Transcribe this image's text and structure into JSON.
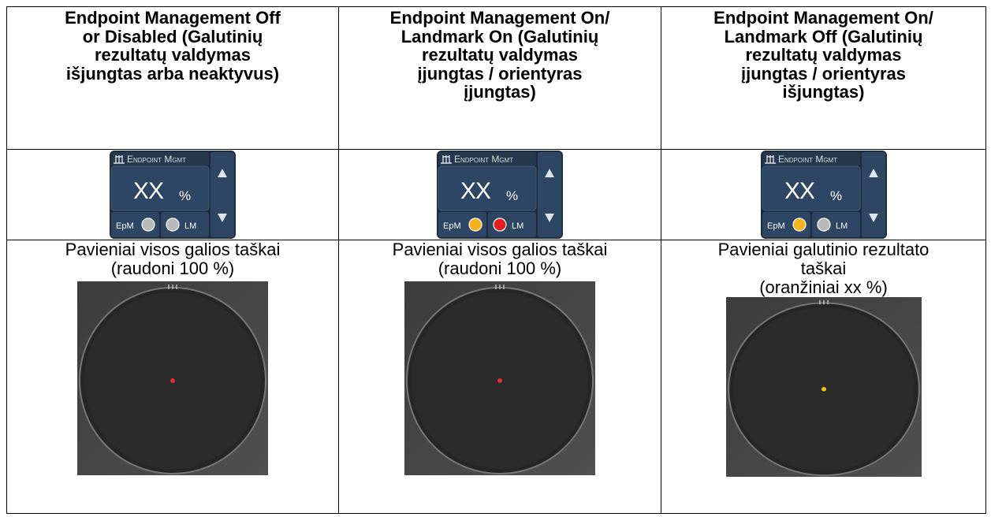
{
  "table": {
    "columns": [
      {
        "header": [
          "Endpoint Management Off",
          "or Disabled (Galutinių",
          "rezultatų valdymas",
          "išjungtas arba neaktyvus)"
        ],
        "widget": {
          "title": "Endpoint Mgmt",
          "value": "XX",
          "unit": "%",
          "epm_label": "EpM",
          "lm_label": "LM",
          "epm_color": "#b9b9b9",
          "lm_color": "#b9b9b9"
        },
        "description": [
          "Pavieniai visos galios taškai",
          "(raudoni 100 %)"
        ],
        "dot_color": "#e23030"
      },
      {
        "header": [
          "Endpoint Management On/",
          "Landmark On (Galutinių",
          "rezultatų valdymas",
          "įjungtas / orientyras",
          "įjungtas)"
        ],
        "widget": {
          "title": "Endpoint Mgmt",
          "value": "XX",
          "unit": "%",
          "epm_label": "EpM",
          "lm_label": "LM",
          "epm_color": "#f5b21c",
          "lm_color": "#e02020"
        },
        "description": [
          "Pavieniai visos galios taškai",
          "(raudoni 100 %)"
        ],
        "dot_color": "#e23030"
      },
      {
        "header": [
          "Endpoint Management On/",
          "Landmark Off (Galutinių",
          "rezultatų valdymas",
          "įjungtas / orientyras",
          "išjungtas)"
        ],
        "widget": {
          "title": "Endpoint Mgmt",
          "value": "XX",
          "unit": "%",
          "epm_label": "EpM",
          "lm_label": "LM",
          "epm_color": "#f5b21c",
          "lm_color": "#b9b9b9"
        },
        "description": [
          "Pavieniai galutinio rezultato",
          "taškai",
          "(oranžiniai xx %)"
        ],
        "dot_color": "#f5c21c"
      }
    ]
  }
}
